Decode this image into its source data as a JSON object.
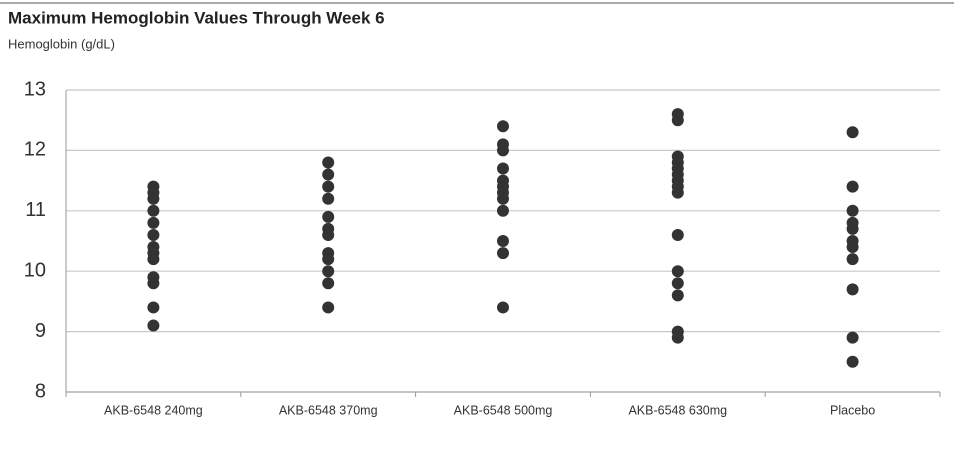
{
  "chart_data": {
    "type": "strip",
    "title": "Maximum Hemoglobin Values Through Week 6",
    "y_label": "Hemoglobin (g/dL)",
    "categories": [
      "AKB-6548 240mg",
      "AKB-6548 370mg",
      "AKB-6548 500mg",
      "AKB-6548 630mg",
      "Placebo"
    ],
    "values": [
      [
        11.4,
        11.3,
        11.2,
        11.0,
        10.8,
        10.6,
        10.4,
        10.3,
        10.2,
        9.9,
        9.8,
        9.4,
        9.1
      ],
      [
        11.8,
        11.6,
        11.4,
        11.2,
        10.9,
        10.7,
        10.6,
        10.3,
        10.2,
        10.0,
        9.8,
        9.4
      ],
      [
        12.4,
        12.1,
        12.0,
        11.7,
        11.5,
        11.4,
        11.3,
        11.2,
        11.0,
        10.5,
        10.3,
        9.4
      ],
      [
        12.6,
        12.5,
        11.9,
        11.8,
        11.7,
        11.6,
        11.5,
        11.4,
        11.3,
        10.6,
        10.0,
        9.8,
        9.6,
        9.0,
        8.9
      ],
      [
        12.3,
        11.4,
        11.0,
        10.8,
        10.7,
        10.5,
        10.4,
        10.2,
        9.7,
        8.9,
        8.5
      ]
    ],
    "color": "#333333",
    "ylim": [
      8,
      13
    ],
    "yticks": [
      8,
      9,
      10,
      11,
      12,
      13
    ],
    "grid": true
  }
}
